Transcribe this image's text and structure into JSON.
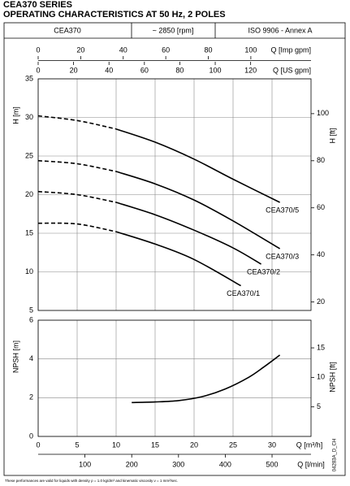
{
  "header": {
    "title": "CEA370 SERIES",
    "subtitle": "OPERATING CHARACTERISTICS AT 50 Hz, 2 POLES",
    "cells": [
      "CEA370",
      "~ 2850 [rpm]",
      "ISO 9906 - Annex A"
    ]
  },
  "chart_data": [
    {
      "type": "line",
      "ylabel": "H [m]",
      "y2label": "H [ft]",
      "xlim": [
        0,
        35
      ],
      "xticks": [
        0,
        5,
        10,
        15,
        20,
        25,
        30
      ],
      "ylim": [
        5,
        35
      ],
      "yticks": [
        5,
        10,
        15,
        20,
        25,
        30,
        35
      ],
      "y2lim": [
        16.4,
        114.8
      ],
      "y2ticks": [
        20,
        40,
        60,
        80,
        100
      ],
      "grid": true,
      "top_axes": [
        {
          "label": "Q [Imp gpm]",
          "lim": [
            0,
            128.3
          ],
          "ticks": [
            0,
            20,
            40,
            60,
            80,
            100
          ]
        },
        {
          "label": "Q [US gpm]",
          "lim": [
            0,
            154.1
          ],
          "ticks": [
            0,
            20,
            40,
            60,
            80,
            100,
            120
          ]
        }
      ],
      "series": [
        {
          "name": "CEA370/5",
          "color": "#000000",
          "dashed_below": 10,
          "x": [
            0,
            5,
            10,
            15,
            20,
            25,
            31
          ],
          "values": [
            30.2,
            29.6,
            28.5,
            26.8,
            24.6,
            22.0,
            19.0
          ]
        },
        {
          "name": "CEA370/3",
          "color": "#000000",
          "dashed_below": 10,
          "x": [
            0,
            5,
            10,
            15,
            20,
            25,
            31
          ],
          "values": [
            24.4,
            24.0,
            23.0,
            21.4,
            19.3,
            16.6,
            13.0
          ]
        },
        {
          "name": "CEA370/2",
          "color": "#000000",
          "dashed_below": 10,
          "x": [
            0,
            5,
            10,
            15,
            20,
            25,
            28.6
          ],
          "values": [
            20.4,
            20.0,
            19.0,
            17.4,
            15.4,
            13.1,
            11.0
          ]
        },
        {
          "name": "CEA370/1",
          "color": "#000000",
          "dashed_below": 10,
          "x": [
            0,
            5,
            10,
            15,
            20,
            26
          ],
          "values": [
            16.3,
            16.2,
            15.2,
            13.6,
            11.6,
            8.2
          ]
        }
      ]
    },
    {
      "type": "line",
      "ylabel": "NPSH [m]",
      "y2label": "NPSH [ft]",
      "xlabel": "Q [m³/h]",
      "xlim": [
        0,
        35
      ],
      "xticks": [
        0,
        5,
        10,
        15,
        20,
        25,
        30
      ],
      "x2label": "Q [l/min]",
      "x2lim": [
        0,
        583.3
      ],
      "x2ticks": [
        100,
        200,
        300,
        400,
        500
      ],
      "ylim": [
        0,
        6
      ],
      "yticks": [
        0,
        2,
        4,
        6
      ],
      "y2lim": [
        0,
        19.685
      ],
      "y2ticks": [
        5,
        10,
        15
      ],
      "grid": true,
      "series": [
        {
          "color": "#000000",
          "x": [
            12,
            15,
            18,
            21,
            24,
            27,
            29,
            31
          ],
          "values": [
            1.75,
            1.78,
            1.85,
            2.05,
            2.45,
            3.05,
            3.6,
            4.2
          ]
        }
      ]
    }
  ],
  "footer": {
    "note": "These performances are valid for liquids with density ρ = 1.0 kg/dm³ and kinematic viscosity ν = 1 mm²/sec.",
    "code": "04283A_D_CH"
  }
}
